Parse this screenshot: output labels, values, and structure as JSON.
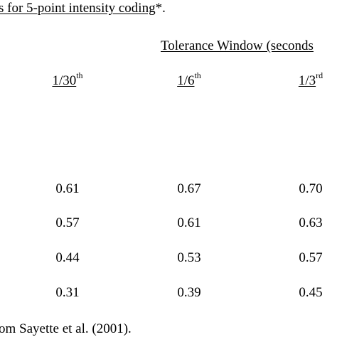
{
  "caption": {
    "underlined": "s for 5-point intensity coding",
    "suffix": "*."
  },
  "group_header": "Tolerance Window (seconds",
  "columns": [
    {
      "base": "1/30",
      "sup": "th"
    },
    {
      "base": "1/6",
      "sup": "th"
    },
    {
      "base": "1/3",
      "sup": "rd"
    }
  ],
  "rows": [
    [
      "0.61",
      "0.67",
      "0.70"
    ],
    [
      "0.57",
      "0.61",
      "0.63"
    ],
    [
      "0.44",
      "0.53",
      "0.57"
    ],
    [
      "0.31",
      "0.39",
      "0.45"
    ]
  ],
  "footnote": "om Sayette et al. (2001)."
}
